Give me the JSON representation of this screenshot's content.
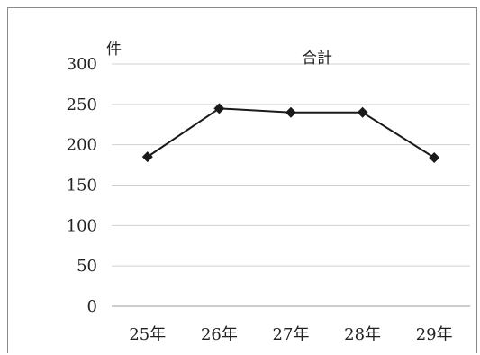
{
  "chart_data": {
    "type": "line",
    "title": "合計",
    "ylabel": "件",
    "xlabel": "",
    "categories": [
      "25年",
      "26年",
      "27年",
      "28年",
      "29年"
    ],
    "series": [
      {
        "values": [
          185,
          245,
          240,
          240,
          184
        ]
      }
    ],
    "ylim": [
      0,
      300
    ],
    "yticks": [
      0,
      50,
      100,
      150,
      200,
      250,
      300
    ],
    "grid": true,
    "legend": "none",
    "colors": {
      "line": "#1a1a1a",
      "grid": "#d0d0d0"
    },
    "marker": "diamond"
  }
}
